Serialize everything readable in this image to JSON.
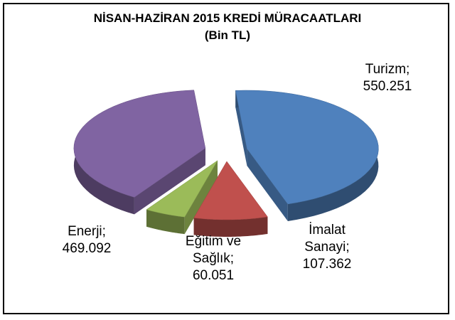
{
  "chart_data": {
    "type": "pie3d",
    "title": "NİSAN-HAZİRAN 2015 KREDİ MÜRACAATLARI",
    "subtitle": "(Bin TL)",
    "categories": [
      "Turizm",
      "İmalat Sanayi",
      "Eğitim ve Sağlık",
      "Enerji"
    ],
    "values": [
      550251,
      107362,
      60051,
      469092
    ],
    "value_labels": [
      "550.251",
      "107.362",
      "60.051",
      "469.092"
    ],
    "label_separator": ";",
    "colors": [
      "#4f81bd",
      "#c0504d",
      "#9bbb59",
      "#8064a2"
    ]
  }
}
